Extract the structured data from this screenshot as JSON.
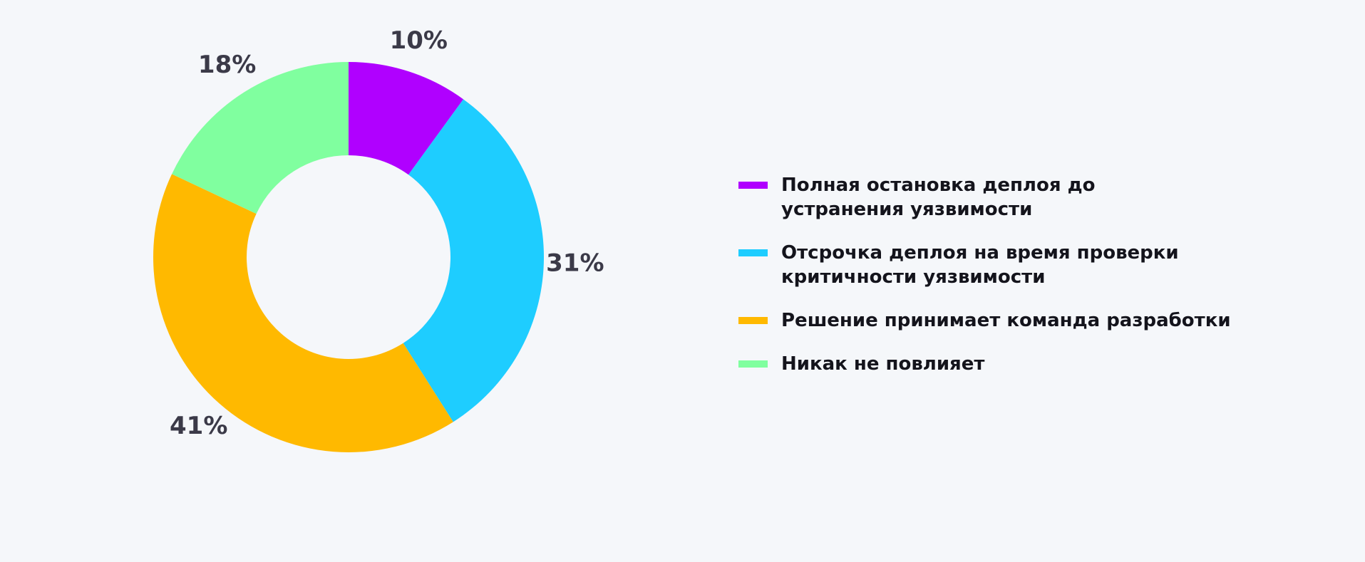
{
  "chart_data": {
    "type": "donut",
    "categories": [
      "Полная остановка деплоя до устранения уязвимости",
      "Отсрочка деплоя на время проверки критичности уязвимости",
      "Решение принимает команда разработки",
      "Никак не повлияет"
    ],
    "values": [
      10,
      31,
      41,
      18
    ],
    "value_labels": [
      "10%",
      "31%",
      "41%",
      "18%"
    ],
    "colors": [
      "#b000ff",
      "#1ecdff",
      "#ffb900",
      "#80ff9f"
    ]
  }
}
